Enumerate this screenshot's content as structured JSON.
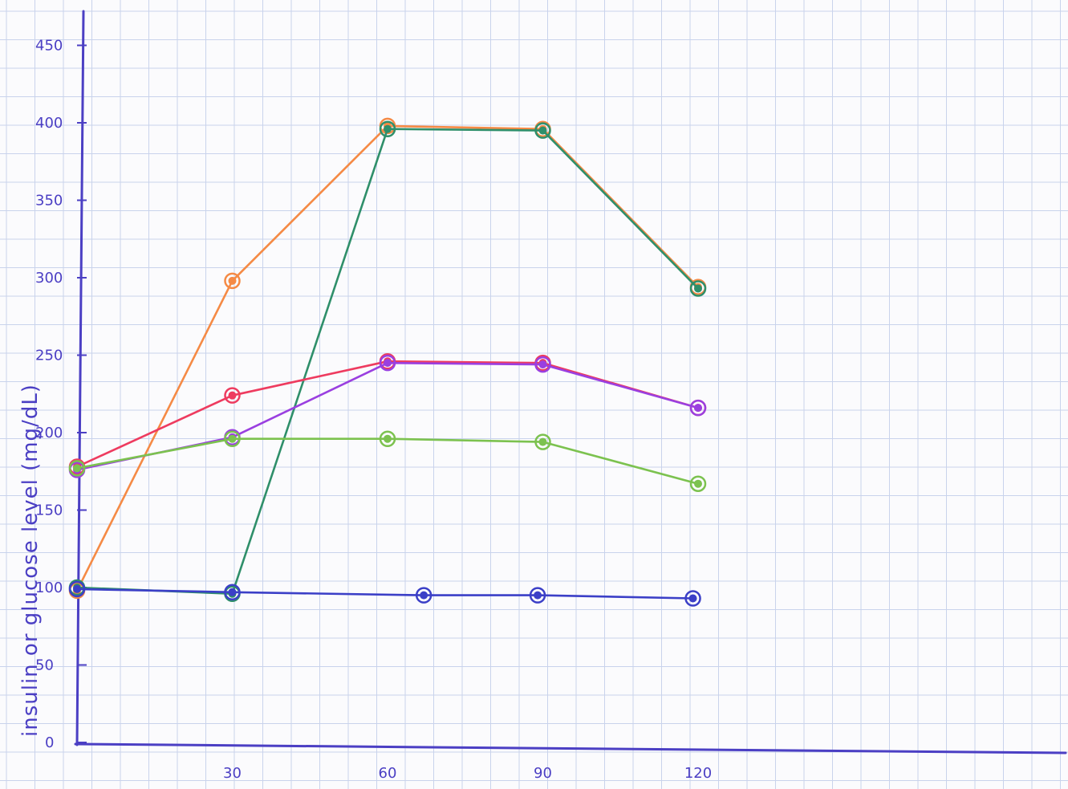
{
  "chart_data": {
    "type": "line",
    "title": "",
    "xlabel": "",
    "ylabel": "insulin or glucose level (mg/dL)",
    "x_ticks": [
      "30",
      "60",
      "90",
      "120"
    ],
    "y_ticks": [
      "0",
      "50",
      "100",
      "150",
      "200",
      "250",
      "300",
      "350",
      "400",
      "450"
    ],
    "xlim": [
      0,
      190
    ],
    "ylim": [
      0,
      470
    ],
    "grid": true,
    "series": [
      {
        "color": "#f58a45",
        "points": [
          [
            0,
            98
          ],
          [
            30,
            298
          ],
          [
            60,
            398
          ],
          [
            90,
            396
          ],
          [
            120,
            294
          ]
        ]
      },
      {
        "color": "#2f8f6a",
        "points": [
          [
            0,
            100
          ],
          [
            30,
            96
          ],
          [
            60,
            396
          ],
          [
            90,
            395
          ],
          [
            120,
            293
          ]
        ]
      },
      {
        "color": "#ee3b5f",
        "points": [
          [
            0,
            178
          ],
          [
            30,
            224
          ],
          [
            60,
            246
          ],
          [
            90,
            245
          ],
          [
            120,
            216
          ]
        ]
      },
      {
        "color": "#9a3fe0",
        "points": [
          [
            0,
            176
          ],
          [
            30,
            197
          ],
          [
            60,
            245
          ],
          [
            90,
            244
          ],
          [
            120,
            216
          ]
        ]
      },
      {
        "color": "#7cc24f",
        "points": [
          [
            0,
            177
          ],
          [
            30,
            196
          ],
          [
            60,
            196
          ],
          [
            90,
            194
          ],
          [
            120,
            167
          ]
        ]
      },
      {
        "color": "#3b3fc7",
        "points": [
          [
            0,
            99
          ],
          [
            30,
            97
          ],
          [
            67,
            95
          ],
          [
            89,
            95
          ],
          [
            119,
            93
          ]
        ]
      }
    ]
  }
}
